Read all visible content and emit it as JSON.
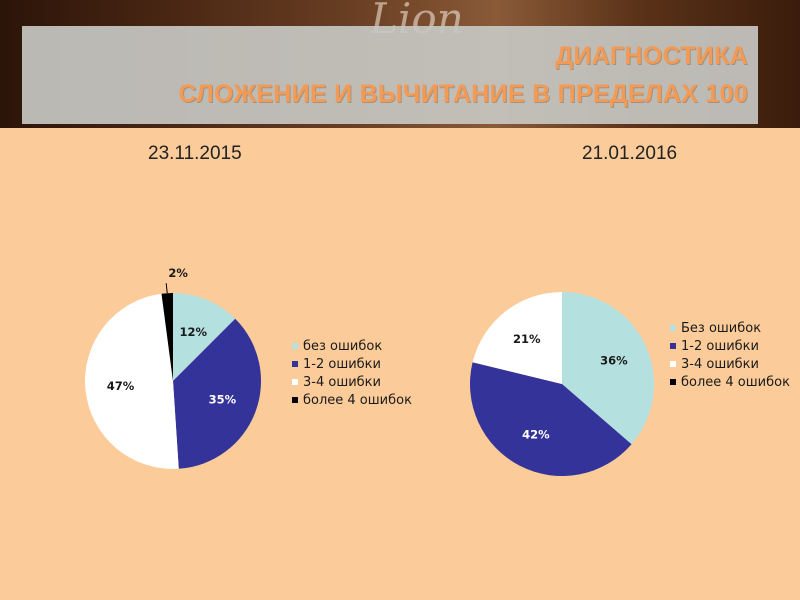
{
  "slide": {
    "title_line1": "ДИАГНОСТИКА",
    "title_line2": "СЛОЖЕНИЕ И ВЫЧИТАНИЕ В ПРЕДЕЛАХ 100",
    "background_script_text": "Lion"
  },
  "colors": {
    "background": "#FBCB9A",
    "title_text": "#F39A54",
    "title_box": "#C6C6C2"
  },
  "chart_data": [
    {
      "type": "pie",
      "title": "23.11.2015",
      "categories": [
        "без ошибок",
        "1-2 ошибки",
        "3-4 ошибки",
        "более 4 ошибок"
      ],
      "values": [
        12,
        35,
        47,
        2
      ],
      "labels": [
        "12%",
        "35%",
        "47%",
        "2%"
      ],
      "colors": [
        "#B4E0E0",
        "#33339A",
        "#FFFFFF",
        "#000000"
      ],
      "legend_position": "right"
    },
    {
      "type": "pie",
      "title": "21.01.2016",
      "categories": [
        "Без ошибок",
        "1-2 ошибки",
        "3-4 ошибки",
        "более 4 ошибок"
      ],
      "values": [
        36,
        42,
        21,
        0
      ],
      "labels": [
        "36%",
        "42%",
        "21%",
        ""
      ],
      "colors": [
        "#B4E0E0",
        "#33339A",
        "#FFFFFF",
        "#000000"
      ],
      "legend_position": "right"
    }
  ]
}
